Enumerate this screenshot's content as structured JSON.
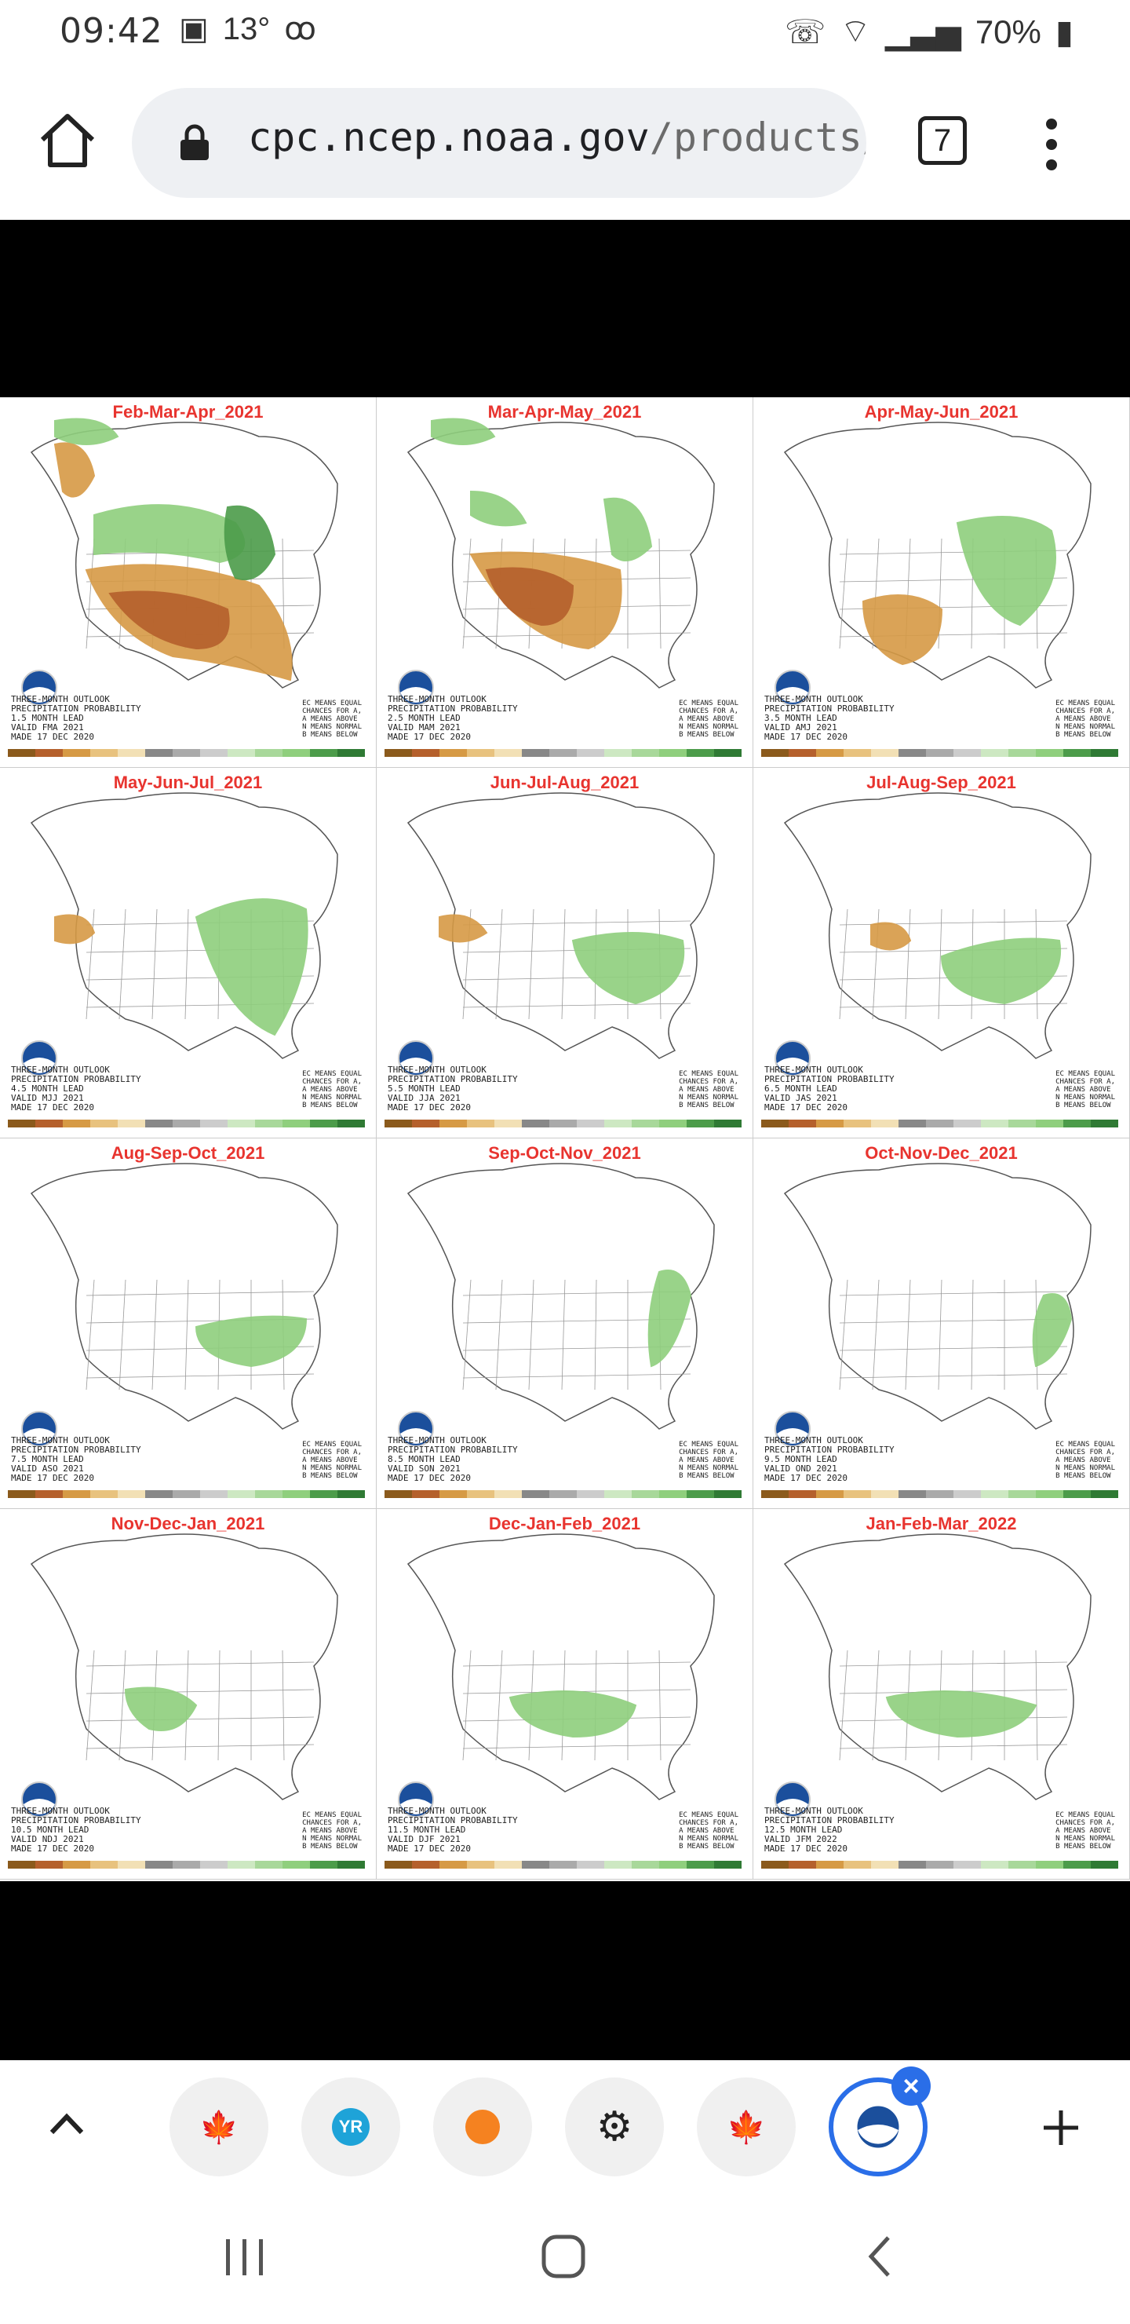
{
  "status": {
    "time": "09:42",
    "temperature": "13°",
    "battery": "70%",
    "icons": [
      "image-icon",
      "voicemail-icon",
      "call-icon",
      "wifi-icon",
      "signal-icon",
      "battery-icon"
    ]
  },
  "browser": {
    "url_domain": "cpc.ncep.noaa.gov",
    "url_path": "/products/pred",
    "tab_count": "7"
  },
  "panels": [
    {
      "title": "Feb-Mar-Apr_2021",
      "lead": "1.5 MONTH LEAD",
      "valid": "VALID FMA 2021"
    },
    {
      "title": "Mar-Apr-May_2021",
      "lead": "2.5 MONTH LEAD",
      "valid": "VALID MAM 2021"
    },
    {
      "title": "Apr-May-Jun_2021",
      "lead": "3.5 MONTH LEAD",
      "valid": "VALID AMJ 2021"
    },
    {
      "title": "May-Jun-Jul_2021",
      "lead": "4.5 MONTH LEAD",
      "valid": "VALID MJJ 2021"
    },
    {
      "title": "Jun-Jul-Aug_2021",
      "lead": "5.5 MONTH LEAD",
      "valid": "VALID JJA 2021"
    },
    {
      "title": "Jul-Aug-Sep_2021",
      "lead": "6.5 MONTH LEAD",
      "valid": "VALID JAS 2021"
    },
    {
      "title": "Aug-Sep-Oct_2021",
      "lead": "7.5 MONTH LEAD",
      "valid": "VALID ASO 2021"
    },
    {
      "title": "Sep-Oct-Nov_2021",
      "lead": "8.5 MONTH LEAD",
      "valid": "VALID SON 2021"
    },
    {
      "title": "Oct-Nov-Dec_2021",
      "lead": "9.5 MONTH LEAD",
      "valid": "VALID OND 2021"
    },
    {
      "title": "Nov-Dec-Jan_2021",
      "lead": "10.5 MONTH LEAD",
      "valid": "VALID NDJ 2021"
    },
    {
      "title": "Dec-Jan-Feb_2021",
      "lead": "11.5 MONTH LEAD",
      "valid": "VALID DJF 2021"
    },
    {
      "title": "Jan-Feb-Mar_2022",
      "lead": "12.5 MONTH LEAD",
      "valid": "VALID JFM 2022"
    }
  ],
  "caption": {
    "line1": "THREE-MONTH OUTLOOK",
    "line2": "PRECIPITATION PROBABILITY",
    "made": "MADE 17 DEC 2020"
  },
  "legend": {
    "l1": "EC MEANS EQUAL",
    "l2": "CHANCES FOR A,",
    "l3": "A MEANS ABOVE",
    "l4": "N MEANS NORMAL",
    "l5": "B MEANS BELOW"
  },
  "colors": {
    "below": "#d69a45",
    "below_strong": "#b5602c",
    "above": "#8fcf7d",
    "above_strong": "#4c9c4a",
    "title": "#e8342f"
  },
  "bottom_tabs": [
    {
      "name": "tab-canada-flag",
      "glyph": "🍁"
    },
    {
      "name": "tab-yr-weather",
      "glyph": "YR"
    },
    {
      "name": "tab-sun-weather",
      "glyph": "☀"
    },
    {
      "name": "tab-settings",
      "glyph": "⚙"
    },
    {
      "name": "tab-canada-flag-2",
      "glyph": "🍁"
    },
    {
      "name": "tab-noaa",
      "glyph": "◉"
    }
  ]
}
